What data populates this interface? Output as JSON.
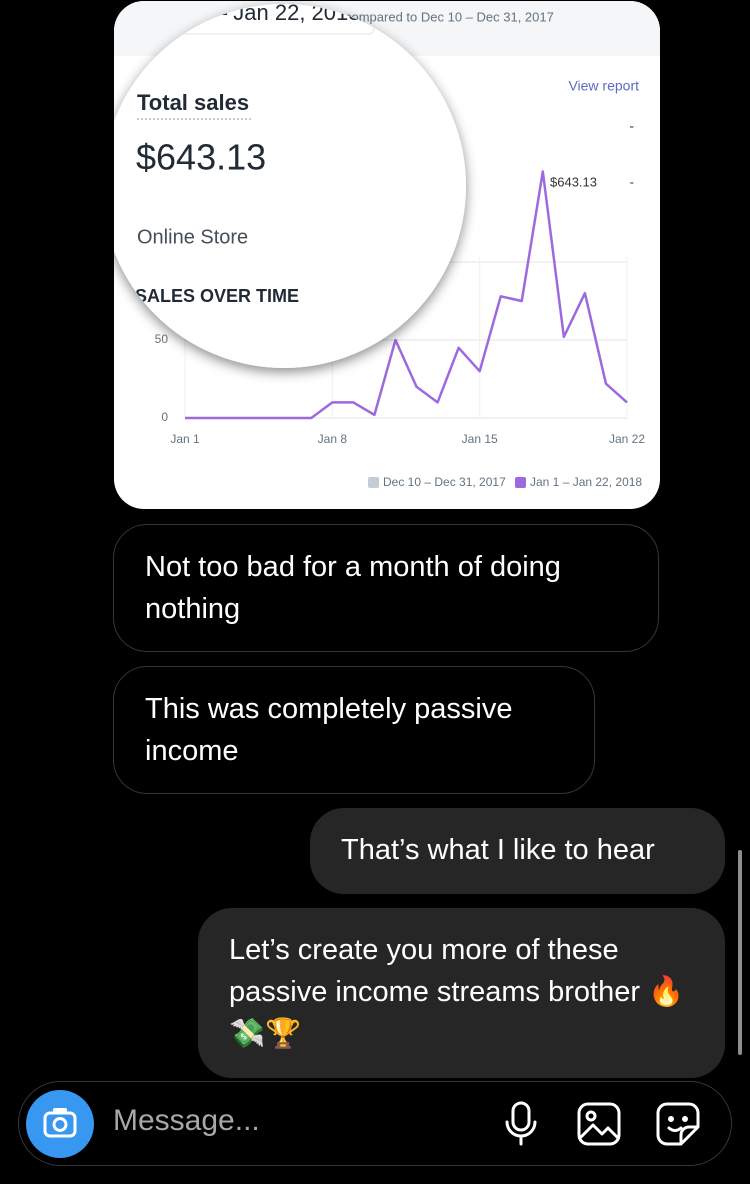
{
  "chart_image": {
    "date_range": "Jan 1 – Jan 22, 2018",
    "comparison": "compared to Dec 10 – Dec 31, 2017",
    "view_report": "View report",
    "metric_title": "Total sales",
    "metric_value": "$643.13",
    "channel": "Online Store",
    "section_title": "SALES OVER TIME",
    "breakdown": [
      "-",
      "$643.13",
      "-"
    ],
    "chart": {
      "type": "line",
      "categories": [
        "Jan 1",
        null,
        null,
        null,
        null,
        null,
        null,
        "Jan 8",
        null,
        null,
        null,
        null,
        null,
        null,
        "Jan 15",
        null,
        null,
        null,
        null,
        null,
        null,
        "Jan 22"
      ],
      "series": [
        {
          "name": "Dec 10 – Dec 31, 2017",
          "color": "#c4cdd5"
        },
        {
          "name": "Jan 1 – Jan 22, 2018",
          "color": "#9c6ade",
          "values": [
            0,
            0,
            0,
            0,
            0,
            0,
            0,
            10,
            10,
            2,
            50,
            20,
            10,
            45,
            30,
            78,
            75,
            158,
            52,
            80,
            22,
            10
          ]
        }
      ],
      "ylim": [
        0,
        200
      ],
      "yticks": [
        0,
        50,
        100
      ]
    }
  },
  "received": [
    "Not too bad for a month of doing nothing",
    "This was completely passive income"
  ],
  "sent": [
    "That’s what I like to hear",
    "Let’s create you more of these passive income streams brother 🔥💸🏆"
  ],
  "composer": {
    "placeholder": "Message..."
  }
}
